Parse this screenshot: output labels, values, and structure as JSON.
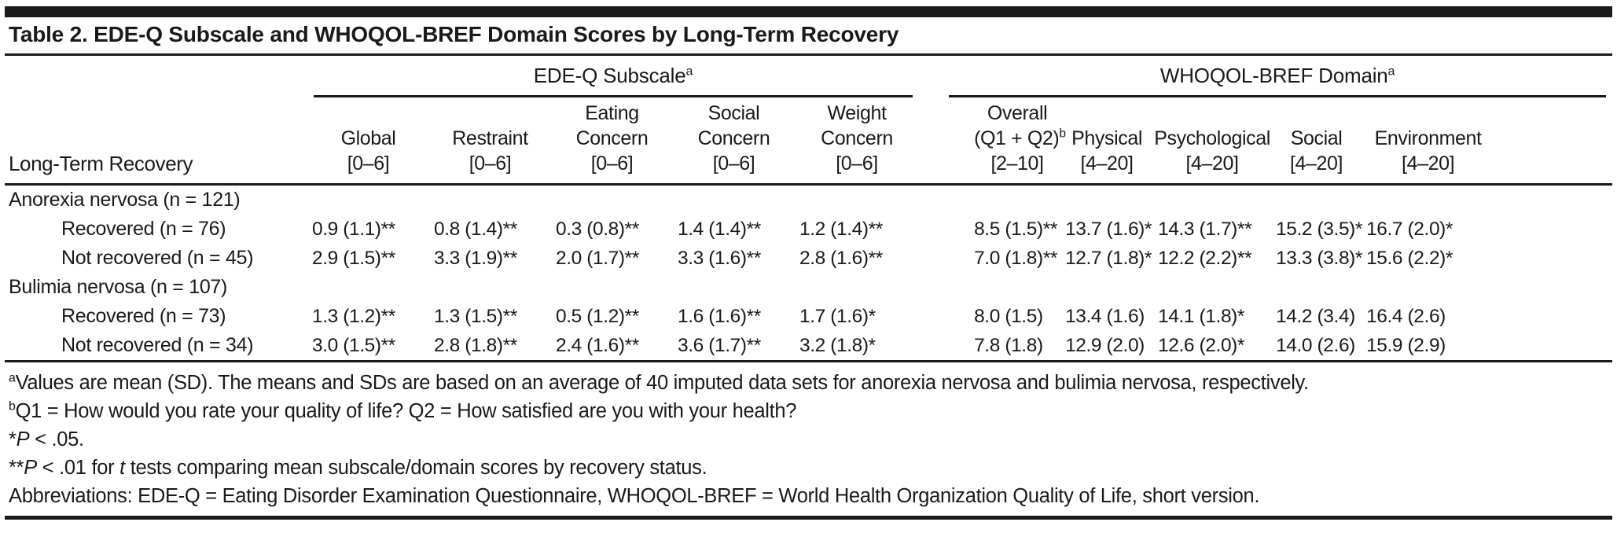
{
  "colors": {
    "ink": "#1a1a1a",
    "paper": "#ffffff"
  },
  "table": {
    "title": "Table 2. EDE-Q Subscale and WHOQOL-BREF Domain Scores by Long-Term Recovery",
    "stub_header": "Long-Term Recovery",
    "spanners": [
      {
        "key": "edeq-subscale",
        "label": "EDE-Q Subscale^a"
      },
      {
        "key": "whoqol-domain",
        "label": "WHOQOL-BREF Domain^a"
      }
    ],
    "columns": [
      {
        "key": "global",
        "lines": [
          "Global",
          "[0–6]"
        ]
      },
      {
        "key": "restraint",
        "lines": [
          "Restraint",
          "[0–6]"
        ]
      },
      {
        "key": "eating-concern",
        "lines": [
          "Eating",
          "Concern",
          "[0–6]"
        ]
      },
      {
        "key": "social-concern",
        "lines": [
          "Social",
          "Concern",
          "[0–6]"
        ]
      },
      {
        "key": "weight-concern",
        "lines": [
          "Weight",
          "Concern",
          "[0–6]"
        ]
      },
      {
        "key": "overall",
        "lines": [
          "Overall",
          "(Q1 + Q2)^b",
          "[2–10]"
        ]
      },
      {
        "key": "physical",
        "lines": [
          "Physical",
          "[4–20]"
        ]
      },
      {
        "key": "psychological",
        "lines": [
          "Psychological",
          "[4–20]"
        ]
      },
      {
        "key": "social",
        "lines": [
          "Social",
          "[4–20]"
        ]
      },
      {
        "key": "environment",
        "lines": [
          "Environment",
          "[4–20]"
        ]
      }
    ],
    "rows": [
      {
        "label": "Anorexia nervosa (n = 121)",
        "indent": false,
        "values": []
      },
      {
        "label": "Recovered (n = 76)",
        "indent": true,
        "values": [
          "0.9 (1.1)**",
          "0.8 (1.4)**",
          "0.3 (0.8)**",
          "1.4 (1.4)**",
          "1.2 (1.4)**",
          "8.5 (1.5)**",
          "13.7 (1.6)*",
          "14.3 (1.7)**",
          "15.2 (3.5)*",
          "16.7 (2.0)*"
        ]
      },
      {
        "label": "Not recovered (n = 45)",
        "indent": true,
        "values": [
          "2.9 (1.5)**",
          "3.3 (1.9)**",
          "2.0 (1.7)**",
          "3.3 (1.6)**",
          "2.8 (1.6)**",
          "7.0 (1.8)**",
          "12.7 (1.8)*",
          "12.2 (2.2)**",
          "13.3 (3.8)*",
          "15.6 (2.2)*"
        ]
      },
      {
        "label": "Bulimia nervosa (n = 107)",
        "indent": false,
        "values": []
      },
      {
        "label": "Recovered (n = 73)",
        "indent": true,
        "values": [
          "1.3 (1.2)**",
          "1.3 (1.5)**",
          "0.5 (1.2)**",
          "1.6 (1.6)**",
          "1.7 (1.6)*",
          "8.0 (1.5)",
          "13.4 (1.6)",
          "14.1 (1.8)*",
          "14.2 (3.4)",
          "16.4 (2.6)"
        ]
      },
      {
        "label": "Not recovered (n = 34)",
        "indent": true,
        "values": [
          "3.0 (1.5)**",
          "2.8 (1.8)**",
          "2.4 (1.6)**",
          "3.6 (1.7)**",
          "3.2 (1.8)*",
          "7.8 (1.8)",
          "12.9 (2.0)",
          "12.6 (2.0)*",
          "14.0 (2.6)",
          "15.9 (2.9)"
        ]
      }
    ],
    "footnotes": [
      {
        "segments": [
          {
            "text": "a",
            "sup": true
          },
          {
            "text": "Values are mean (SD). The means and SDs are based on an average of 40 imputed data sets for anorexia nervosa and bulimia nervosa, respectively."
          }
        ]
      },
      {
        "segments": [
          {
            "text": "b",
            "sup": true
          },
          {
            "text": "Q1 = How would you rate your quality of life? Q2 = How satisfied are you with your health?"
          }
        ]
      },
      {
        "segments": [
          {
            "text": "*"
          },
          {
            "text": "P",
            "italic": true
          },
          {
            "text": " < .05."
          }
        ]
      },
      {
        "segments": [
          {
            "text": "**"
          },
          {
            "text": "P",
            "italic": true
          },
          {
            "text": " < .01 for "
          },
          {
            "text": "t",
            "italic": true
          },
          {
            "text": " tests comparing mean subscale/domain scores by recovery status."
          }
        ]
      },
      {
        "segments": [
          {
            "text": "Abbreviations: EDE-Q = Eating Disorder Examination Questionnaire, WHOQOL-BREF = World Health Organization Quality of Life, short version."
          }
        ]
      }
    ]
  }
}
